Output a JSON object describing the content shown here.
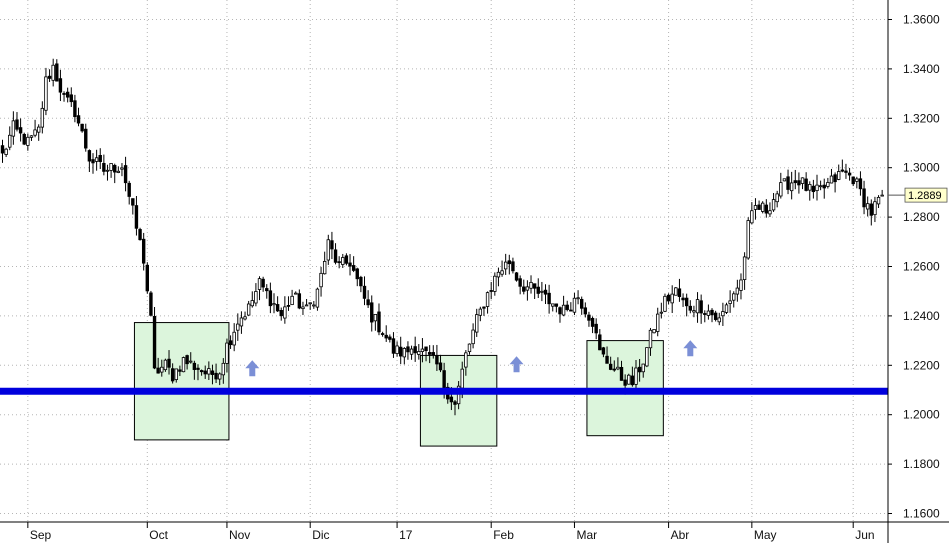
{
  "chart_data": {
    "type": "candlestick",
    "title": "",
    "xlabel": "",
    "ylabel": "",
    "ylim": [
      1.155,
      1.362
    ],
    "y_ticks": [
      "1.1600",
      "1.1800",
      "1.2000",
      "1.2200",
      "1.2400",
      "1.2600",
      "1.2800",
      "1.3000",
      "1.3200",
      "1.3400",
      "1.3600"
    ],
    "x_ticks": [
      "Sep",
      "Oct",
      "Nov",
      "Dic",
      "17",
      "Feb",
      "Mar",
      "Abr",
      "May",
      "Jun"
    ],
    "grid": true,
    "last_price": "1.2889",
    "support_level": 1.2095,
    "colors": {
      "support_line": "#0000dd",
      "zone_fill": "#dcf5dc",
      "arrow": "#7b8fd6",
      "price_tag": "#ffffcc",
      "grid": "#b5b5b5",
      "candle_up": "#ffffff",
      "candle_down": "#000000"
    },
    "zones": [
      {
        "from_period": 37,
        "to_period": 62,
        "high": 1.2373,
        "low": 1.1898
      },
      {
        "from_period": 116,
        "to_period": 136,
        "high": 1.224,
        "low": 1.1873
      },
      {
        "from_period": 162,
        "to_period": 182,
        "high": 1.23,
        "low": 1.1915
      }
    ],
    "arrows": [
      {
        "period": 69,
        "price": 1.2184,
        "icon": "up-arrow-icon"
      },
      {
        "period": 142,
        "price": 1.22,
        "icon": "up-arrow-icon"
      },
      {
        "period": 190,
        "price": 1.2265,
        "icon": "up-arrow-icon"
      }
    ],
    "keypoints": [
      [
        0,
        1.305
      ],
      [
        3,
        1.316
      ],
      [
        7,
        1.31
      ],
      [
        10,
        1.315
      ],
      [
        12,
        1.335
      ],
      [
        14,
        1.341
      ],
      [
        17,
        1.328
      ],
      [
        20,
        1.323
      ],
      [
        24,
        1.304
      ],
      [
        28,
        1.299
      ],
      [
        33,
        1.301
      ],
      [
        36,
        1.282
      ],
      [
        39,
        1.263
      ],
      [
        41,
        1.238
      ],
      [
        42,
        1.217
      ],
      [
        45,
        1.22
      ],
      [
        47,
        1.216
      ],
      [
        50,
        1.222
      ],
      [
        54,
        1.219
      ],
      [
        57,
        1.216
      ],
      [
        60,
        1.218
      ],
      [
        62,
        1.228
      ],
      [
        65,
        1.238
      ],
      [
        68,
        1.243
      ],
      [
        71,
        1.253
      ],
      [
        74,
        1.247
      ],
      [
        77,
        1.24
      ],
      [
        80,
        1.248
      ],
      [
        84,
        1.242
      ],
      [
        87,
        1.25
      ],
      [
        90,
        1.269
      ],
      [
        93,
        1.26
      ],
      [
        96,
        1.262
      ],
      [
        99,
        1.25
      ],
      [
        102,
        1.24
      ],
      [
        105,
        1.234
      ],
      [
        108,
        1.226
      ],
      [
        111,
        1.225
      ],
      [
        114,
        1.228
      ],
      [
        117,
        1.224
      ],
      [
        120,
        1.22
      ],
      [
        122,
        1.212
      ],
      [
        125,
        1.204
      ],
      [
        128,
        1.224
      ],
      [
        131,
        1.238
      ],
      [
        134,
        1.249
      ],
      [
        137,
        1.258
      ],
      [
        140,
        1.262
      ],
      [
        143,
        1.253
      ],
      [
        147,
        1.25
      ],
      [
        151,
        1.246
      ],
      [
        155,
        1.242
      ],
      [
        159,
        1.248
      ],
      [
        163,
        1.238
      ],
      [
        165,
        1.225
      ],
      [
        168,
        1.22
      ],
      [
        171,
        1.215
      ],
      [
        174,
        1.213
      ],
      [
        177,
        1.222
      ],
      [
        180,
        1.236
      ],
      [
        183,
        1.246
      ],
      [
        186,
        1.25
      ],
      [
        189,
        1.243
      ],
      [
        192,
        1.245
      ],
      [
        195,
        1.242
      ],
      [
        198,
        1.238
      ],
      [
        201,
        1.247
      ],
      [
        204,
        1.254
      ],
      [
        206,
        1.276
      ],
      [
        208,
        1.284
      ],
      [
        211,
        1.283
      ],
      [
        214,
        1.29
      ],
      [
        217,
        1.294
      ],
      [
        220,
        1.295
      ],
      [
        224,
        1.289
      ],
      [
        228,
        1.293
      ],
      [
        232,
        1.298
      ],
      [
        235,
        1.296
      ],
      [
        238,
        1.287
      ],
      [
        240,
        1.282
      ],
      [
        243,
        1.2889
      ]
    ],
    "periods": 244,
    "month_starts": [
      {
        "label": "Sep",
        "period": 7
      },
      {
        "label": "Oct",
        "period": 40
      },
      {
        "label": "Nov",
        "period": 62
      },
      {
        "label": "Dic",
        "period": 85
      },
      {
        "label": "17",
        "period": 109
      },
      {
        "label": "Feb",
        "period": 135
      },
      {
        "label": "Mar",
        "period": 158
      },
      {
        "label": "Abr",
        "period": 184
      },
      {
        "label": "May",
        "period": 207
      },
      {
        "label": "Jun",
        "period": 235
      }
    ]
  }
}
